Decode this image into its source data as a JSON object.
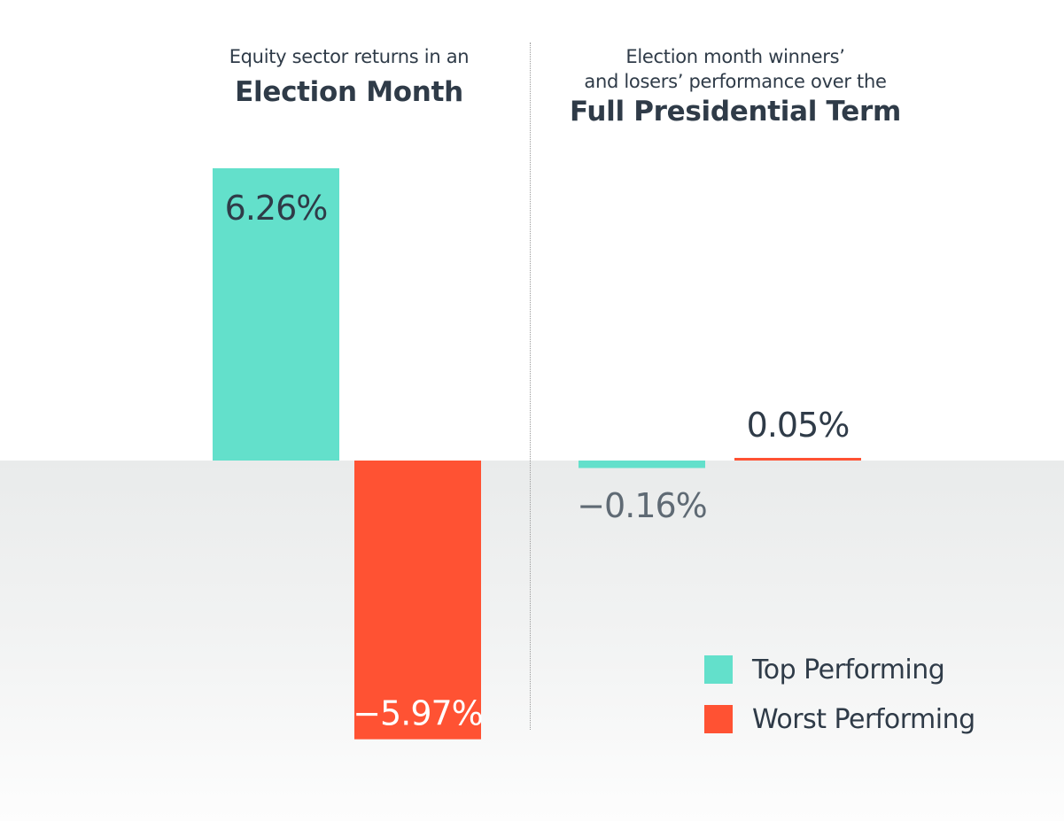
{
  "panels": {
    "left": {
      "subtitle": "Equity sector returns in an",
      "title": "Election Month"
    },
    "right": {
      "subtitle_line1": "Election month winners’",
      "subtitle_line2": "and losers’ performance over the",
      "title": "Full Presidential Term"
    }
  },
  "legend": {
    "items": [
      {
        "label": "Top Performing",
        "color": "#63e0cb"
      },
      {
        "label": "Worst Performing",
        "color": "#ff5233"
      }
    ]
  },
  "chart_data": [
    {
      "type": "bar",
      "title": "Equity sector returns in an Election Month",
      "series": [
        {
          "name": "Top Performing",
          "values": [
            6.26
          ],
          "labels": [
            "6.26%"
          ],
          "color": "#63e0cb"
        },
        {
          "name": "Worst Performing",
          "values": [
            -5.97
          ],
          "labels": [
            "−5.97%"
          ],
          "color": "#ff5233"
        }
      ],
      "value_unit": "%",
      "axis": "hidden",
      "grid": false
    },
    {
      "type": "bar",
      "title": "Election month winners’ and losers’ performance over the Full Presidential Term",
      "series": [
        {
          "name": "Top Performing",
          "values": [
            -0.16
          ],
          "labels": [
            "−0.16%"
          ],
          "color": "#63e0cb"
        },
        {
          "name": "Worst Performing",
          "values": [
            0.05
          ],
          "labels": [
            "0.05%"
          ],
          "color": "#ff5233"
        }
      ],
      "value_unit": "%",
      "axis": "hidden",
      "grid": false
    }
  ]
}
